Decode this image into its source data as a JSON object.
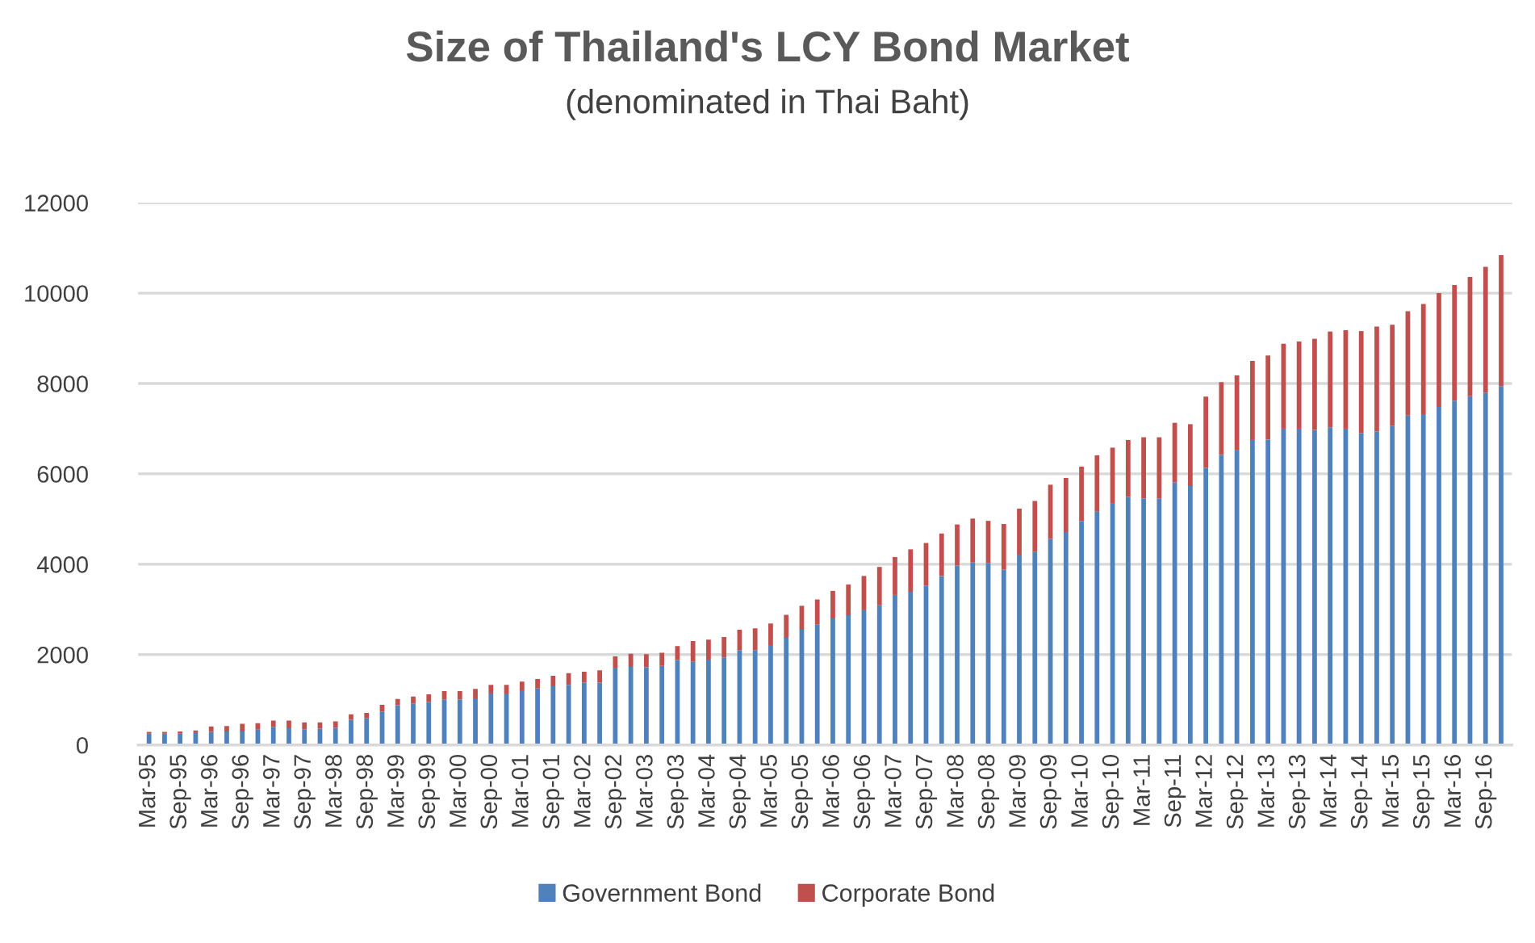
{
  "chart_data": {
    "type": "bar",
    "title": "Size of Thailand's LCY Bond Market",
    "subtitle": "(denominated in Thai Baht)",
    "categories": [
      "Mar-95",
      null,
      "Sep-95",
      null,
      "Mar-96",
      null,
      "Sep-96",
      null,
      "Mar-97",
      null,
      "Sep-97",
      null,
      "Mar-98",
      null,
      "Sep-98",
      null,
      "Mar-99",
      null,
      "Sep-99",
      null,
      "Mar-00",
      null,
      "Sep-00",
      null,
      "Mar-01",
      null,
      "Sep-01",
      null,
      "Mar-02",
      null,
      "Sep-02",
      null,
      "Mar-03",
      null,
      "Sep-03",
      null,
      "Mar-04",
      null,
      "Sep-04",
      null,
      "Mar-05",
      null,
      "Sep-05",
      null,
      "Mar-06",
      null,
      "Sep-06",
      null,
      "Mar-07",
      null,
      "Sep-07",
      null,
      "Mar-08",
      null,
      "Sep-08",
      null,
      "Mar-09",
      null,
      "Sep-09",
      null,
      "Mar-10",
      null,
      "Sep-10",
      null,
      "Mar-11",
      null,
      "Sep-11",
      null,
      "Mar-12",
      null,
      "Sep-12",
      null,
      "Mar-13",
      null,
      "Sep-13",
      null,
      "Mar-14",
      null,
      "Sep-14",
      null,
      "Mar-15",
      null,
      "Sep-15",
      null,
      "Mar-16",
      null,
      "Sep-16",
      null
    ],
    "stacked": true,
    "series": [
      {
        "name": "Government Bond",
        "color": "#4f81bd",
        "values": [
          250,
          250,
          250,
          280,
          290,
          300,
          300,
          340,
          400,
          370,
          350,
          360,
          380,
          560,
          590,
          740,
          880,
          920,
          950,
          1010,
          1010,
          1030,
          1140,
          1140,
          1210,
          1250,
          1300,
          1330,
          1380,
          1380,
          1710,
          1730,
          1720,
          1750,
          1880,
          1840,
          1890,
          1940,
          2100,
          2100,
          2210,
          2370,
          2550,
          2660,
          2800,
          2870,
          2980,
          3090,
          3320,
          3390,
          3530,
          3740,
          3970,
          4040,
          4030,
          3880,
          4210,
          4270,
          4560,
          4710,
          4960,
          5170,
          5340,
          5490,
          5460,
          5450,
          5810,
          5730,
          6130,
          6420,
          6520,
          6750,
          6760,
          7000,
          7000,
          6970,
          7030,
          7000,
          6900,
          6940,
          7060,
          7290,
          7320,
          7480,
          7620,
          7720,
          7800,
          7940
        ]
      },
      {
        "name": "Corporate Bond",
        "color": "#c0504d",
        "values": [
          40,
          40,
          50,
          40,
          120,
          120,
          170,
          140,
          140,
          170,
          150,
          140,
          140,
          120,
          120,
          150,
          140,
          150,
          170,
          180,
          180,
          210,
          190,
          190,
          190,
          210,
          230,
          260,
          240,
          270,
          250,
          290,
          290,
          290,
          310,
          460,
          440,
          450,
          450,
          480,
          480,
          510,
          530,
          560,
          610,
          680,
          760,
          850,
          840,
          940,
          940,
          940,
          910,
          970,
          930,
          1010,
          1020,
          1130,
          1200,
          1200,
          1200,
          1240,
          1240,
          1260,
          1350,
          1360,
          1320,
          1370,
          1580,
          1610,
          1660,
          1750,
          1860,
          1880,
          1930,
          2020,
          2120,
          2180,
          2260,
          2320,
          2240,
          2310,
          2440,
          2520,
          2560,
          2640,
          2780,
          2900
        ]
      }
    ],
    "ylim": [
      0,
      12000
    ],
    "yticks": [
      0,
      2000,
      4000,
      6000,
      8000,
      10000,
      12000
    ],
    "grid": "y",
    "legend": "bottom"
  }
}
